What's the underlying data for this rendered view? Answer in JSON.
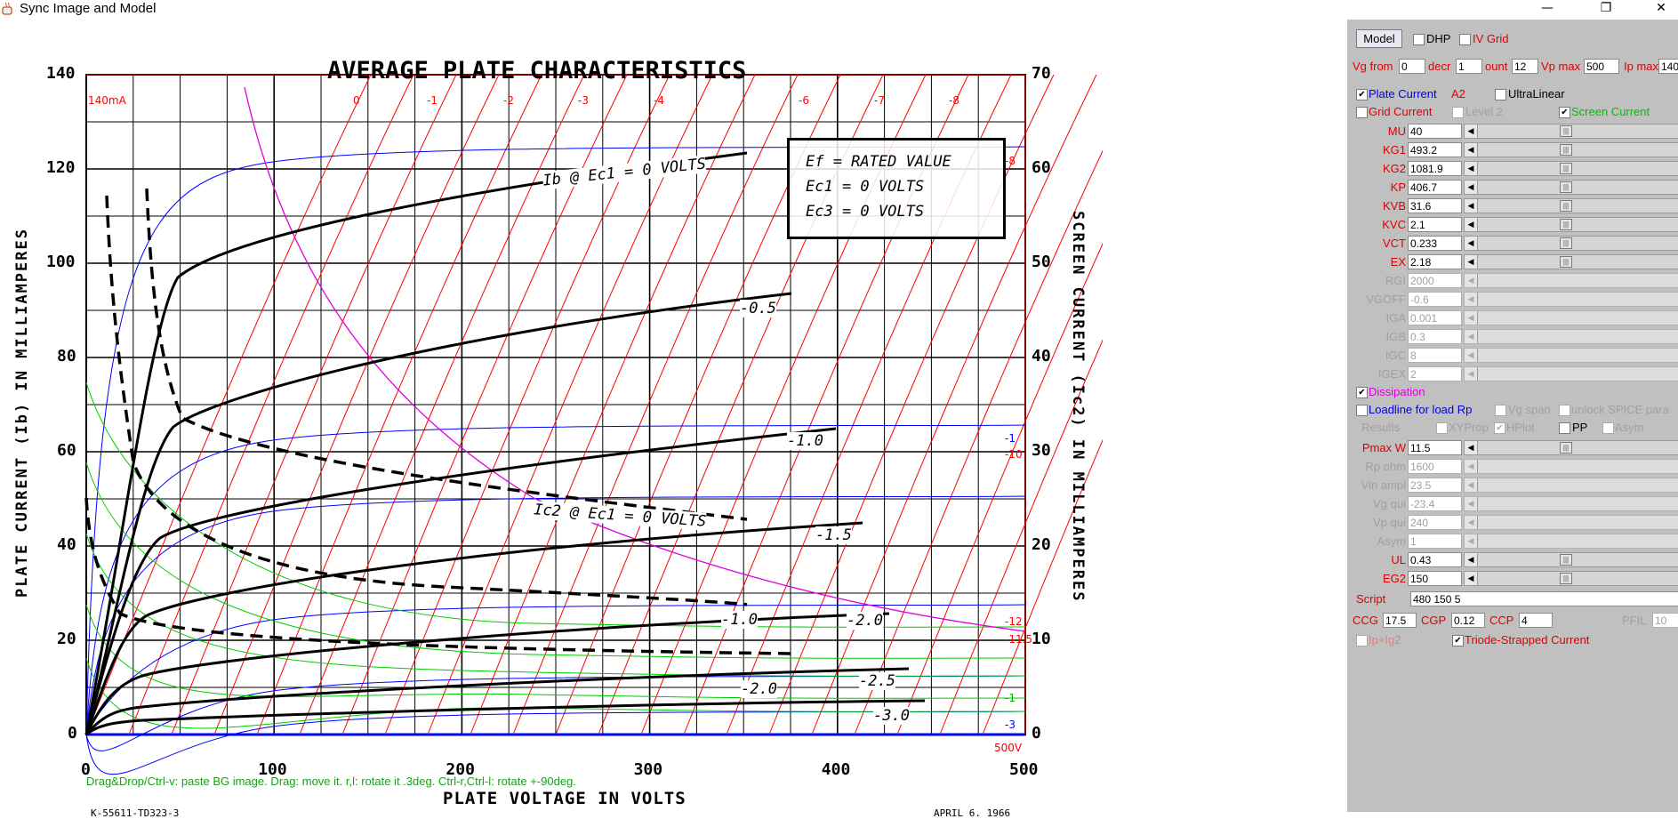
{
  "window": {
    "title": "Sync Image and Model",
    "minimize": "—",
    "maximize": "❐",
    "close": "✕"
  },
  "chart_image": {
    "title": "AVERAGE PLATE CHARACTERISTICS",
    "xlabel": "PLATE VOLTAGE IN VOLTS",
    "ylabel_left": "PLATE CURRENT (Ib) IN MILLIAMPERES",
    "ylabel_right": "SCREEN CURRENT (Ic2) IN MILLIAMPERES",
    "x_ticks": [
      "0",
      "100",
      "200",
      "300",
      "400",
      "500"
    ],
    "y_left_ticks": [
      "0",
      "20",
      "40",
      "60",
      "80",
      "100",
      "120",
      "140"
    ],
    "y_right_ticks": [
      "0",
      "10",
      "20",
      "30",
      "40",
      "50",
      "60",
      "70"
    ],
    "legend_box": [
      "Ef = RATED VALUE",
      "Ec1 = 0 VOLTS",
      "Ec3 = 0 VOLTS"
    ],
    "curve_labels": {
      "ib": "Ib @ Ec1 = 0 VOLTS",
      "ic2": "Ic2 @ Ec1 = 0 VOLTS",
      "m05": "-0.5",
      "m10": "-1.0",
      "m15": "-1.5",
      "m20": "-2.0",
      "m25": "-2.5",
      "m30": "-3.0",
      "s10": "-1.0",
      "s20": "-2.0"
    },
    "footer_left": "K-55611-TD323-3",
    "footer_right": "APRIL 6. 1966",
    "overlay_top_left": "140mA",
    "overlay_top_labels": [
      "0",
      "-1",
      "-2",
      "-3",
      "-4",
      "-6",
      "-7",
      "-8"
    ],
    "overlay_right_labels": [
      "-8",
      "-1",
      "-10",
      "-12",
      "-11.5",
      "-1",
      "-3"
    ],
    "overlay_bottom_right": "500V",
    "hint": "Drag&Drop/Ctrl-v: paste BG image. Drag: move it. r,l: rotate it .3deg. Ctrl-r,Ctrl-l: rotate +-90deg."
  },
  "panel": {
    "model_button": "Model",
    "dhp": "DHP",
    "iv_grid": "IV Grid",
    "vg_from_label": "Vg from",
    "vg_from": "0",
    "decr_label": "decr",
    "decr": "1",
    "count_label": "ount",
    "count": "12",
    "vp_max_label": "Vp max",
    "vp_max": "500",
    "ip_max_label": "Ip max",
    "ip_max": "140",
    "plate_current": "Plate Current",
    "a2": "A2",
    "ultralinear": "UltraLinear",
    "grid_current": "Grid Current",
    "level2": "Level 2",
    "screen_current": "Screen Current",
    "params": [
      {
        "name": "MU",
        "value": "40"
      },
      {
        "name": "KG1",
        "value": "493.2"
      },
      {
        "name": "KG2",
        "value": "1081.9"
      },
      {
        "name": "KP",
        "value": "406.7"
      },
      {
        "name": "KVB",
        "value": "31.6"
      },
      {
        "name": "KVC",
        "value": "2.1"
      },
      {
        "name": "VCT",
        "value": "0.233"
      },
      {
        "name": "EX",
        "value": "2.18"
      }
    ],
    "disabled_params": [
      {
        "name": "RGI",
        "value": "2000"
      },
      {
        "name": "VGOFF",
        "value": "-0.6"
      },
      {
        "name": "IGA",
        "value": "0.001"
      },
      {
        "name": "IGB",
        "value": "0.3"
      },
      {
        "name": "IGC",
        "value": "8"
      },
      {
        "name": "IGEX",
        "value": "2"
      }
    ],
    "dissipation": "Dissipation",
    "loadline": "Loadline for load Rp",
    "vg_span": "Vg span",
    "unlock_spice": "unlock SPICE para",
    "results": "Results",
    "xyprop": "XYProp",
    "hplot": "HPlot",
    "pp": "PP",
    "asym": "Asym",
    "pmax": {
      "name": "Pmax W",
      "value": "11.5"
    },
    "load_params": [
      {
        "name": "Rp ohm",
        "value": "1600"
      },
      {
        "name": "Vin ampl",
        "value": "23.5"
      },
      {
        "name": "Vg qui",
        "value": "-23.4"
      },
      {
        "name": "Vp qui",
        "value": "240"
      },
      {
        "name": "Asym",
        "value": "1"
      }
    ],
    "ul": {
      "name": "UL",
      "value": "0.43"
    },
    "eg2": {
      "name": "EG2",
      "value": "150"
    },
    "script_label": "Script",
    "script_value": "480 150 5",
    "ccg_label": "CCG",
    "ccg": "17.5",
    "cgp_label": "CGP",
    "cgp": "0.12",
    "ccp_label": "CCP",
    "ccp": "4",
    "pfil_label": "PFIL",
    "pfil": "10",
    "ip_ig2": "Ip+Ig2",
    "triode_strapped": "Triode-Strapped Current"
  }
}
